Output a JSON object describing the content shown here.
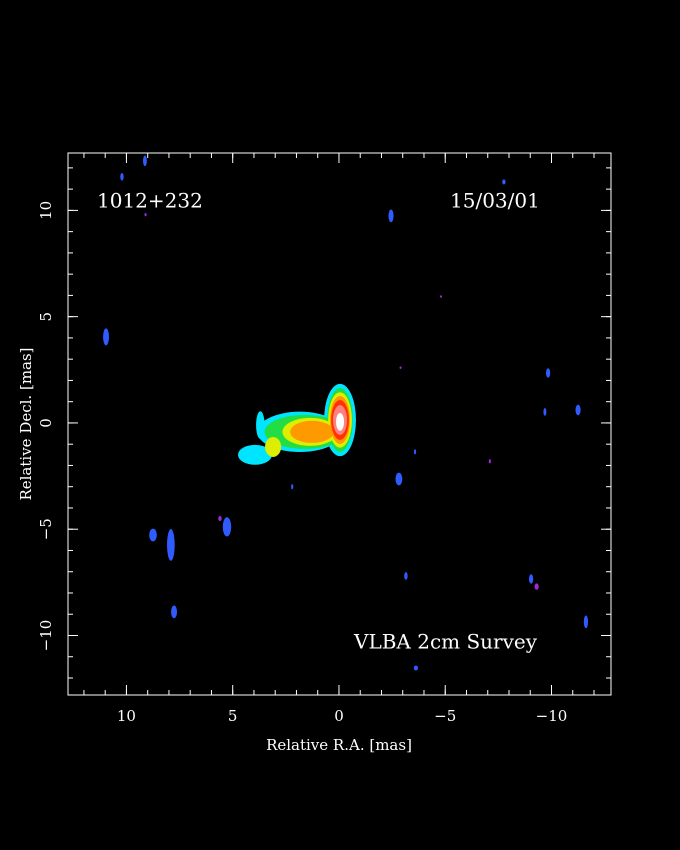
{
  "chart_data": {
    "type": "image",
    "source": "1012+232",
    "epoch": "15/03/01",
    "survey": "VLBA 2cm Survey",
    "x_label": "Relative R.A. [mas]",
    "y_label": "Relative Decl. [mas]",
    "xlim": [
      12.75,
      -12.8
    ],
    "ylim": [
      -12.8,
      12.7
    ],
    "xticks": [
      10,
      5,
      0,
      {
        "value": -5,
        "label": "−5"
      },
      {
        "value": -10,
        "label": "−10"
      }
    ],
    "yticks": [
      {
        "value": -10,
        "label": "−10"
      },
      {
        "value": -5,
        "label": "−5"
      },
      0,
      5,
      10
    ],
    "xminorticks": [
      12,
      11,
      10,
      9,
      8,
      7,
      6,
      5,
      4,
      3,
      2,
      1,
      0,
      -1,
      -2,
      -3,
      -4,
      -5,
      -6,
      -7,
      -8,
      -9,
      -10,
      -11,
      -12
    ],
    "yminorticks": [
      -12,
      -11,
      -10,
      -9,
      -8,
      -7,
      -6,
      -5,
      -4,
      -3,
      -2,
      -1,
      0,
      1,
      2,
      3,
      4,
      5,
      6,
      7,
      8,
      9,
      10,
      11,
      12
    ],
    "layers": [
      {
        "color": "#2f5bff",
        "points": [
          {
            "x": 9.13,
            "y": 12.33,
            "rx": 0.09,
            "ry": 0.25
          },
          {
            "x": 10.21,
            "y": 11.58,
            "rx": 0.08,
            "ry": 0.18
          },
          {
            "x": -2.45,
            "y": 9.74,
            "rx": 0.12,
            "ry": 0.3
          },
          {
            "x": -7.76,
            "y": 11.34,
            "rx": 0.08,
            "ry": 0.12
          },
          {
            "x": 10.96,
            "y": 4.05,
            "rx": 0.14,
            "ry": 0.4
          },
          {
            "x": -9.84,
            "y": 2.35,
            "rx": 0.1,
            "ry": 0.22
          },
          {
            "x": -11.25,
            "y": 0.61,
            "rx": 0.12,
            "ry": 0.25
          },
          {
            "x": -9.69,
            "y": 0.52,
            "rx": 0.07,
            "ry": 0.18
          },
          {
            "x": -2.82,
            "y": -2.64,
            "rx": 0.16,
            "ry": 0.3
          },
          {
            "x": -3.58,
            "y": -1.36,
            "rx": 0.05,
            "ry": 0.12
          },
          {
            "x": 8.75,
            "y": -5.27,
            "rx": 0.18,
            "ry": 0.3
          },
          {
            "x": 7.91,
            "y": -5.74,
            "rx": 0.18,
            "ry": 0.75
          },
          {
            "x": 5.27,
            "y": -4.89,
            "rx": 0.2,
            "ry": 0.45
          },
          {
            "x": 7.76,
            "y": -8.89,
            "rx": 0.14,
            "ry": 0.3
          },
          {
            "x": -3.15,
            "y": -7.2,
            "rx": 0.08,
            "ry": 0.18
          },
          {
            "x": -9.04,
            "y": -7.34,
            "rx": 0.1,
            "ry": 0.22
          },
          {
            "x": -11.62,
            "y": -9.36,
            "rx": 0.1,
            "ry": 0.3
          },
          {
            "x": -3.62,
            "y": -11.53,
            "rx": 0.1,
            "ry": 0.12
          },
          {
            "x": 2.2,
            "y": -3.0,
            "rx": 0.05,
            "ry": 0.12
          }
        ]
      },
      {
        "color": "#9a2bd6",
        "points": [
          {
            "x": -4.8,
            "y": 5.95,
            "rx": 0.05,
            "ry": 0.06
          },
          {
            "x": -2.9,
            "y": 2.6,
            "rx": 0.05,
            "ry": 0.06
          },
          {
            "x": -7.1,
            "y": -1.8,
            "rx": 0.05,
            "ry": 0.1
          },
          {
            "x": -9.3,
            "y": -7.7,
            "rx": 0.1,
            "ry": 0.15
          },
          {
            "x": 9.1,
            "y": 9.8,
            "rx": 0.05,
            "ry": 0.08
          },
          {
            "x": 5.6,
            "y": -4.5,
            "rx": 0.08,
            "ry": 0.12
          }
        ]
      },
      {
        "color": "#00e5ff",
        "points": [
          {
            "x": -0.05,
            "y": 0.14,
            "rx": 0.75,
            "ry": 1.7
          },
          {
            "x": 1.84,
            "y": -0.42,
            "rx": 2.0,
            "ry": 0.95
          },
          {
            "x": 3.95,
            "y": -1.5,
            "rx": 0.8,
            "ry": 0.47
          },
          {
            "x": 3.7,
            "y": -0.1,
            "rx": 0.2,
            "ry": 0.65
          }
        ]
      },
      {
        "color": "#22dd44",
        "points": [
          {
            "x": 1.6,
            "y": -0.42,
            "rx": 1.9,
            "ry": 0.8
          },
          {
            "x": -0.05,
            "y": 0.14,
            "rx": 0.6,
            "ry": 1.5
          }
        ]
      },
      {
        "color": "#ddee00",
        "points": [
          {
            "x": 1.36,
            "y": -0.42,
            "rx": 1.3,
            "ry": 0.66
          },
          {
            "x": 3.1,
            "y": -1.13,
            "rx": 0.38,
            "ry": 0.47
          },
          {
            "x": -0.05,
            "y": 0.14,
            "rx": 0.56,
            "ry": 1.3
          }
        ]
      },
      {
        "color": "#ff9900",
        "points": [
          {
            "x": 1.27,
            "y": -0.42,
            "rx": 1.03,
            "ry": 0.52
          },
          {
            "x": -0.05,
            "y": 0.14,
            "rx": 0.47,
            "ry": 1.13
          }
        ]
      },
      {
        "color": "#ff3300",
        "points": [
          {
            "x": -0.05,
            "y": 0.14,
            "rx": 0.42,
            "ry": 0.94
          }
        ]
      },
      {
        "color": "#ff8080",
        "points": [
          {
            "x": -0.05,
            "y": 0.14,
            "rx": 0.33,
            "ry": 0.7
          }
        ]
      },
      {
        "color": "#ffffff",
        "points": [
          {
            "x": -0.05,
            "y": 0.05,
            "rx": 0.19,
            "ry": 0.42
          }
        ]
      }
    ]
  }
}
